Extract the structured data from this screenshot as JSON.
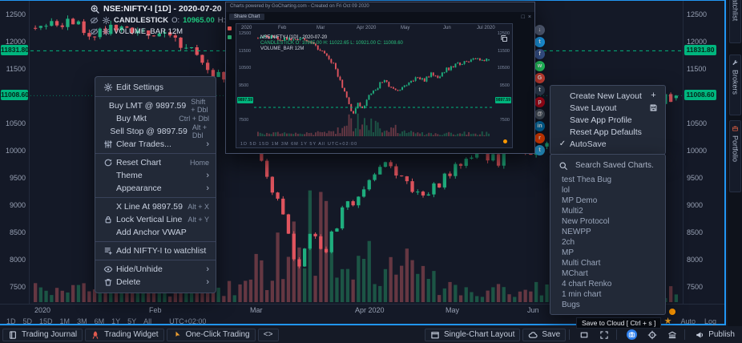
{
  "theme": {
    "accent_blue": "#2196f3",
    "candle_green": "#1fae7e",
    "candle_red": "#e0545e",
    "badge_green": "#00b57e",
    "orange": "#ff9800",
    "star_gold": "#f0a020"
  },
  "chart": {
    "legend": {
      "symbol": "NSE:NIFTY-I [1D] - 2020-07-20",
      "series_name": "CANDLESTICK",
      "o_label": "O:",
      "o": "10965.00",
      "h_label": "H:",
      "h": "11022.65",
      "l_label": "L:",
      "l": "10921.00",
      "c_label": "C:",
      "c": "11008.60",
      "volume_row": "VOLUME_BAR 12M"
    },
    "range_buttons": [
      "1D",
      "5D",
      "15D",
      "1M",
      "3M",
      "6M",
      "1Y",
      "5Y",
      "All"
    ],
    "timezone": "UTC+02:00",
    "scale_auto": "Auto",
    "scale_log": "Log"
  },
  "chart_data": {
    "type": "candlestick",
    "symbol": "NSE:NIFTY-I",
    "interval": "1D",
    "last_date": "2020-07-20",
    "last_ohlc": {
      "open": 10965.0,
      "high": 11022.65,
      "low": 10921.0,
      "close": 11008.6
    },
    "volume_label": "12M",
    "price_level_lines": [
      11831.8,
      11008.6
    ],
    "y_ticks": [
      12500,
      12000,
      11500,
      10500,
      10000,
      9500,
      9000,
      8500,
      8000,
      7500
    ],
    "x_labels": [
      "2020",
      "Feb",
      "Mar",
      "Apr 2020",
      "May",
      "Jun"
    ],
    "y_range": [
      7500,
      12500
    ],
    "price_anchors": [
      [
        0,
        12250
      ],
      [
        0.04,
        12380
      ],
      [
        0.08,
        12180
      ],
      [
        0.12,
        12280
      ],
      [
        0.16,
        12080
      ],
      [
        0.2,
        12150
      ],
      [
        0.24,
        11900
      ],
      [
        0.27,
        11550
      ],
      [
        0.3,
        11250
      ],
      [
        0.33,
        10700
      ],
      [
        0.36,
        9600
      ],
      [
        0.385,
        8850
      ],
      [
        0.41,
        7800
      ],
      [
        0.43,
        8500
      ],
      [
        0.45,
        8100
      ],
      [
        0.48,
        8900
      ],
      [
        0.51,
        9250
      ],
      [
        0.54,
        9800
      ],
      [
        0.57,
        9500
      ],
      [
        0.6,
        9200
      ],
      [
        0.63,
        9400
      ],
      [
        0.66,
        9700
      ],
      [
        0.69,
        10050
      ],
      [
        0.72,
        9800
      ],
      [
        0.75,
        10150
      ],
      [
        0.78,
        10000
      ],
      [
        0.81,
        10400
      ],
      [
        0.85,
        10650
      ],
      [
        0.89,
        10900
      ],
      [
        0.93,
        11050
      ],
      [
        0.97,
        10900
      ],
      [
        1,
        11010
      ]
    ]
  },
  "context_menu": {
    "sections": [
      {
        "items": [
          {
            "icon": "gear-icon",
            "label": "Edit Settings"
          }
        ]
      },
      {
        "items": [
          {
            "label": "Buy LMT @ 9897.59",
            "shortcut": "Shift + Dbl"
          },
          {
            "label": "Buy Mkt",
            "shortcut": "Ctrl + Dbl"
          },
          {
            "label": "Sell Stop @ 9897.59",
            "shortcut": "Alt + Dbl"
          },
          {
            "icon": "sliders-icon",
            "label": "Clear Trades...",
            "submenu": true
          }
        ]
      },
      {
        "items": [
          {
            "icon": "refresh-icon",
            "label": "Reset Chart",
            "shortcut": "Home"
          },
          {
            "label": "Theme",
            "submenu": true
          },
          {
            "label": "Appearance",
            "submenu": true
          }
        ]
      },
      {
        "items": [
          {
            "label": "X Line At 9897.59",
            "shortcut": "Alt + X"
          },
          {
            "icon": "lock-icon",
            "label": "Lock Vertical Line",
            "shortcut": "Alt + Y"
          },
          {
            "label": "Add Anchor VWAP"
          }
        ]
      },
      {
        "items": [
          {
            "icon": "watchlist-add-icon",
            "label": "Add NIFTY-I to watchlist"
          }
        ]
      },
      {
        "items": [
          {
            "icon": "eye-icon",
            "label": "Hide/Unhide",
            "submenu": true
          },
          {
            "icon": "trash-icon",
            "label": "Delete",
            "submenu": true
          }
        ]
      }
    ]
  },
  "layout_menu": {
    "items": [
      {
        "label": "Create New Layout",
        "right_icon": "plus-icon"
      },
      {
        "label": "Save Layout",
        "right_icon": "floppy-icon"
      },
      {
        "label": "Save App Profile"
      },
      {
        "label": "Reset App Defaults"
      },
      {
        "label": "AutoSave",
        "checked": true
      }
    ]
  },
  "saved_charts": {
    "search_placeholder": "Search Saved Charts.",
    "items": [
      "test Thea Bug",
      "lol",
      "MP Demo",
      "Multi2",
      "New Protocol",
      "NEWPP",
      "2ch",
      "MP",
      "Multi Chart",
      "MChart",
      "4 chart Renko",
      "1 min chart",
      "Bugs"
    ]
  },
  "popup": {
    "window_title": "Charts powered by GoCharting.com - Created on Fri Oct 09 2020",
    "tab_label": "Share Chart",
    "time_axis": [
      "2020",
      "Feb",
      "Mar",
      "Apr 2020",
      "May",
      "Jun",
      "Jul 2020"
    ],
    "legend_symbol": "NSE:NIFTY-I [1D] - 2020-07-20",
    "legend_series": "CANDLESTICK O: 10965.00 H: 11022.65 L: 10921.00 C: 11008.60",
    "legend_volume": "VOLUME_BAR 12M",
    "bottom_strip": "1D 5D 15D 1M 3M 6M 1Y 5Y All    UTC+02:00",
    "level_badge": "9897.59"
  },
  "share_buttons": [
    {
      "name": "download-icon",
      "color": "#56617a",
      "glyph": "↓"
    },
    {
      "name": "twitter-icon",
      "color": "#1da1f2",
      "glyph": "t"
    },
    {
      "name": "facebook-icon",
      "color": "#3b5998",
      "glyph": "f"
    },
    {
      "name": "whatsapp-icon",
      "color": "#25d366",
      "glyph": "w"
    },
    {
      "name": "google-plus-icon",
      "color": "#db4437",
      "glyph": "G"
    },
    {
      "name": "tumblr-icon",
      "color": "#35465c",
      "glyph": "t"
    },
    {
      "name": "pinterest-icon",
      "color": "#bd081c",
      "glyph": "p"
    },
    {
      "name": "email-icon",
      "color": "#4a5564",
      "glyph": "@"
    },
    {
      "name": "linkedin-icon",
      "color": "#0077b5",
      "glyph": "in"
    },
    {
      "name": "reddit-icon",
      "color": "#ff4500",
      "glyph": "r"
    },
    {
      "name": "telegram-icon",
      "color": "#29a3dd",
      "glyph": "t"
    }
  ],
  "tooltip": {
    "text": "Save to Cloud [ Ctrl + s ]"
  },
  "bottom_bar": {
    "left": [
      {
        "icon": "journal-icon",
        "label": "Trading Journal"
      },
      {
        "icon": "rocket-icon",
        "label": "Trading Widget"
      },
      {
        "icon": "one-click-icon",
        "label": "One-Click Trading"
      },
      {
        "icon": "code-icon",
        "label": ""
      }
    ],
    "right": [
      {
        "icon": "layout-icon",
        "label": "Single-Chart Layout"
      },
      {
        "icon": "cloud-icon",
        "label": "Save"
      },
      {
        "icon": "rectangle-icon",
        "label": ""
      },
      {
        "icon": "fullscreen-icon",
        "label": ""
      },
      {
        "icon": "camera-icon",
        "label": ""
      },
      {
        "icon": "target-icon",
        "label": ""
      },
      {
        "icon": "bank-icon",
        "label": ""
      },
      {
        "icon": "publish-icon",
        "label": "Publish"
      }
    ]
  },
  "side_tabs": {
    "items": [
      {
        "label": "Watchlist"
      },
      {
        "icon": "wrench-icon",
        "label": "Brokers"
      },
      {
        "icon": "briefcase-icon",
        "label": "Portfolio"
      }
    ]
  }
}
